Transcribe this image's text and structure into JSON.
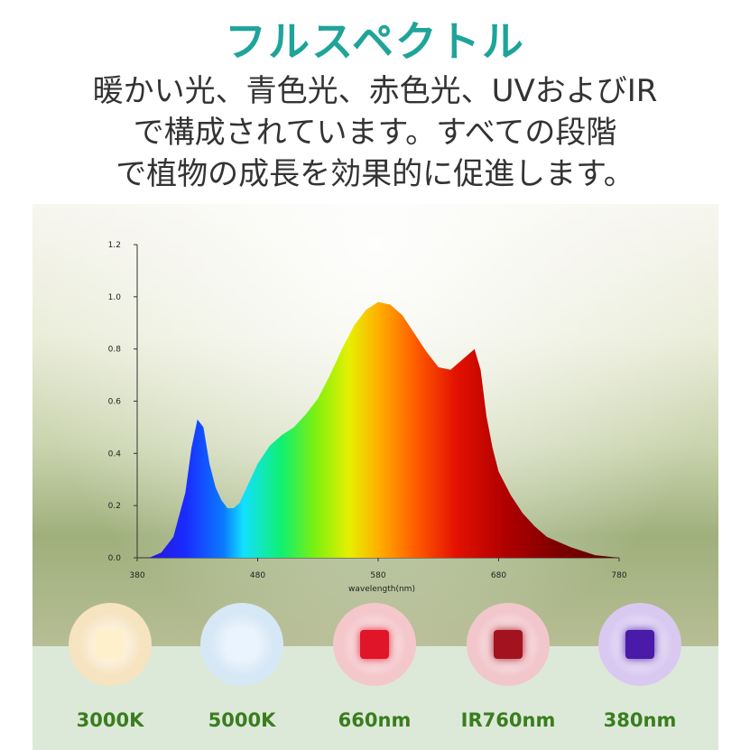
{
  "header": {
    "title": "フルスペクトル",
    "lines": [
      "暖かい光、青色光、赤色光、UVおよびIR",
      "で構成されています。すべての段階",
      "で植物の成長を効果的に促進します。"
    ]
  },
  "chart_data": {
    "type": "area",
    "title": "",
    "xlabel": "wavelength(nm)",
    "ylabel": "",
    "xlim": [
      380,
      780
    ],
    "ylim": [
      0,
      1.2
    ],
    "x_ticks": [
      380,
      480,
      580,
      680,
      780
    ],
    "y_ticks": [
      0.0,
      0.2,
      0.4,
      0.6,
      0.8,
      1.0,
      1.2
    ],
    "x_tick_labels": [
      "380",
      "480",
      "580",
      "680",
      "780"
    ],
    "y_tick_labels": [
      "0.0",
      "0.2",
      "0.4",
      "0.6",
      "0.8",
      "1.0",
      "1.2"
    ],
    "grid": false,
    "series": [
      {
        "x": [
          390,
          400,
          410,
          420,
          425,
          430,
          435,
          440,
          445,
          450,
          455,
          460,
          465,
          470,
          475,
          480,
          490,
          500,
          510,
          520,
          530,
          540,
          550,
          560,
          570,
          580,
          590,
          600,
          610,
          620,
          630,
          640,
          650,
          660,
          665,
          670,
          675,
          680,
          690,
          700,
          710,
          720,
          740,
          760,
          780
        ],
        "y": [
          0.0,
          0.02,
          0.08,
          0.25,
          0.42,
          0.53,
          0.5,
          0.36,
          0.27,
          0.22,
          0.19,
          0.19,
          0.21,
          0.26,
          0.31,
          0.36,
          0.43,
          0.47,
          0.5,
          0.55,
          0.61,
          0.7,
          0.8,
          0.89,
          0.95,
          0.98,
          0.97,
          0.93,
          0.86,
          0.79,
          0.73,
          0.72,
          0.76,
          0.8,
          0.72,
          0.54,
          0.42,
          0.33,
          0.24,
          0.17,
          0.12,
          0.08,
          0.04,
          0.01,
          0.0
        ]
      }
    ]
  },
  "lights": [
    {
      "label": "3000K",
      "glow": "#f6e3bf",
      "chip": "#fff0cc"
    },
    {
      "label": "5000K",
      "glow": "#d6e7f6",
      "chip": "#eaf4ff"
    },
    {
      "label": "660nm",
      "glow": "#f4c7cb",
      "chip": "#e0152a"
    },
    {
      "label": "IR760nm",
      "glow": "#f2c7cc",
      "chip": "#a3121f"
    },
    {
      "label": "380nm",
      "glow": "#d9c9f0",
      "chip": "#4a1aa8"
    }
  ],
  "colors": {
    "title": "#1fa49a",
    "label": "#3a7d1f"
  }
}
